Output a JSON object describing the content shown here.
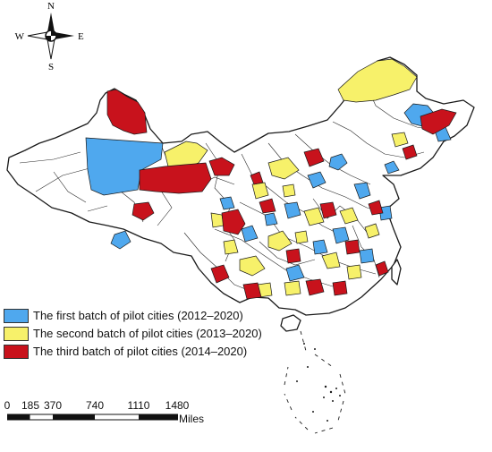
{
  "compass": {
    "north": "N",
    "south": "S",
    "east": "E",
    "west": "W"
  },
  "legend": [
    {
      "label": "The first batch of pilot cities (2012–2020)",
      "color": "#4fa8ee"
    },
    {
      "label": "The second batch of pilot cities (2013–2020)",
      "color": "#f7f16a"
    },
    {
      "label": "The third batch of pilot cities (2014–2020)",
      "color": "#c8121c"
    }
  ],
  "scale_bar": {
    "ticks": [
      "0",
      "185",
      "370",
      "740",
      "1110",
      "1480"
    ],
    "unit": "Miles"
  },
  "colors": {
    "boundary": "#1a1a1a",
    "unselected": "#ffffff"
  }
}
